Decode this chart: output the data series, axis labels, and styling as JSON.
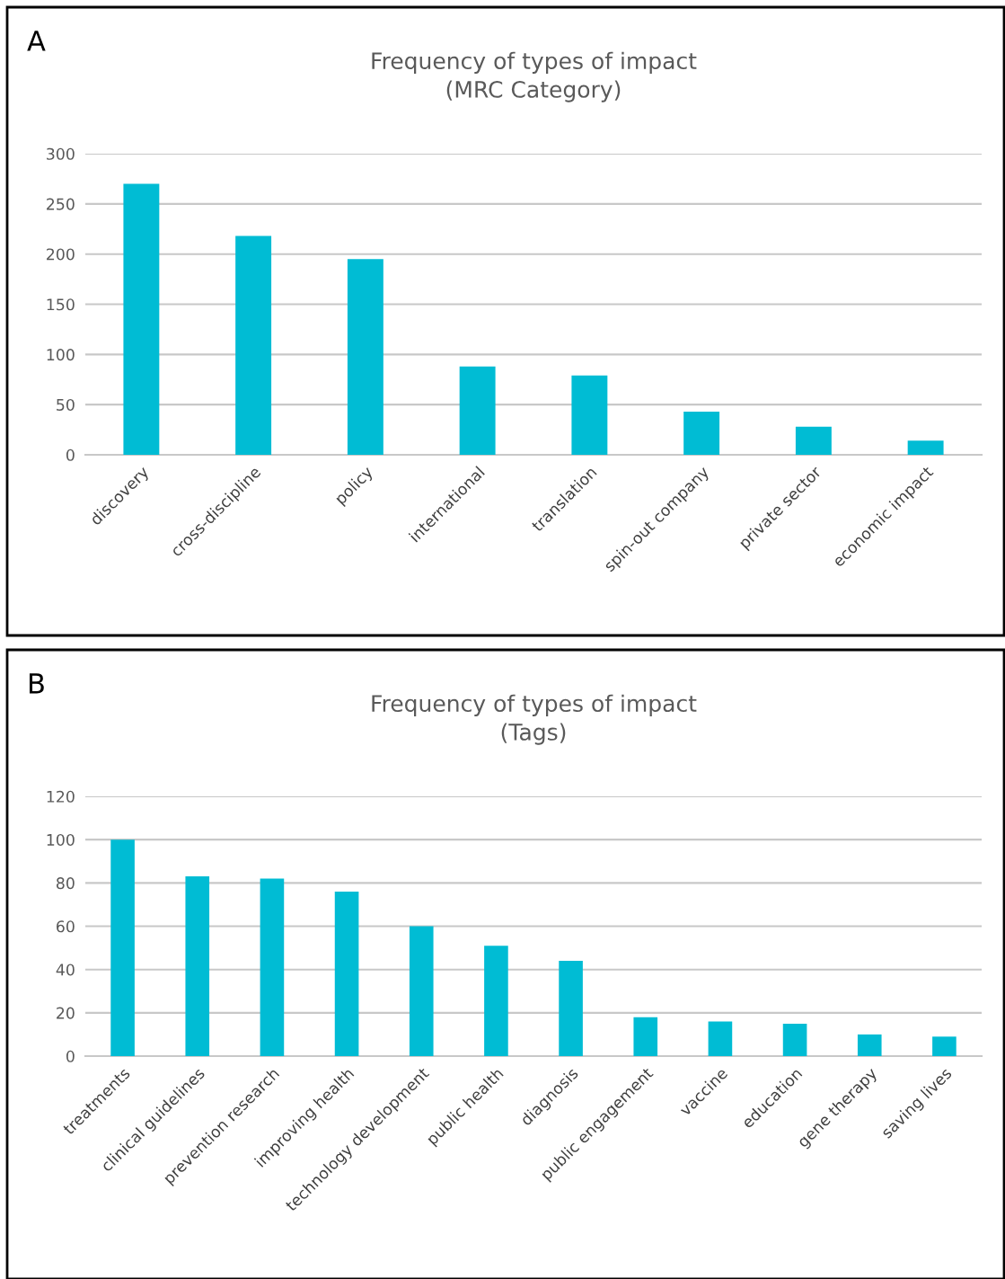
{
  "chart_data": [
    {
      "type": "bar",
      "title": "Frequency of types of impact\n(MRC Category)",
      "annotations": [
        "A"
      ],
      "categories": [
        "discovery",
        "cross-discipline",
        "policy",
        "international",
        "translation",
        "spin-out company",
        "private sector",
        "economic impact"
      ],
      "values": [
        270,
        218,
        195,
        88,
        79,
        43,
        28,
        14
      ],
      "color": "#00bcd4",
      "ylim": [
        0,
        300
      ],
      "yticks": [
        0,
        50,
        100,
        150,
        200,
        250,
        300
      ],
      "grid": "y",
      "legend": false
    },
    {
      "type": "bar",
      "title": "Frequency of types of impact\n(Tags)",
      "annotations": [
        "B"
      ],
      "categories": [
        "treatments",
        "clinical guidelines",
        "prevention research",
        "improving health",
        "technology development",
        "public health",
        "diagnosis",
        "public engagement",
        "vaccine",
        "education",
        "gene therapy",
        "saving lives"
      ],
      "values": [
        100,
        83,
        82,
        76,
        60,
        51,
        44,
        18,
        16,
        15,
        10,
        9
      ],
      "color": "#00bcd4",
      "ylim": [
        0,
        120
      ],
      "yticks": [
        0,
        20,
        40,
        60,
        80,
        100,
        120
      ],
      "grid": "y",
      "legend": false
    }
  ]
}
